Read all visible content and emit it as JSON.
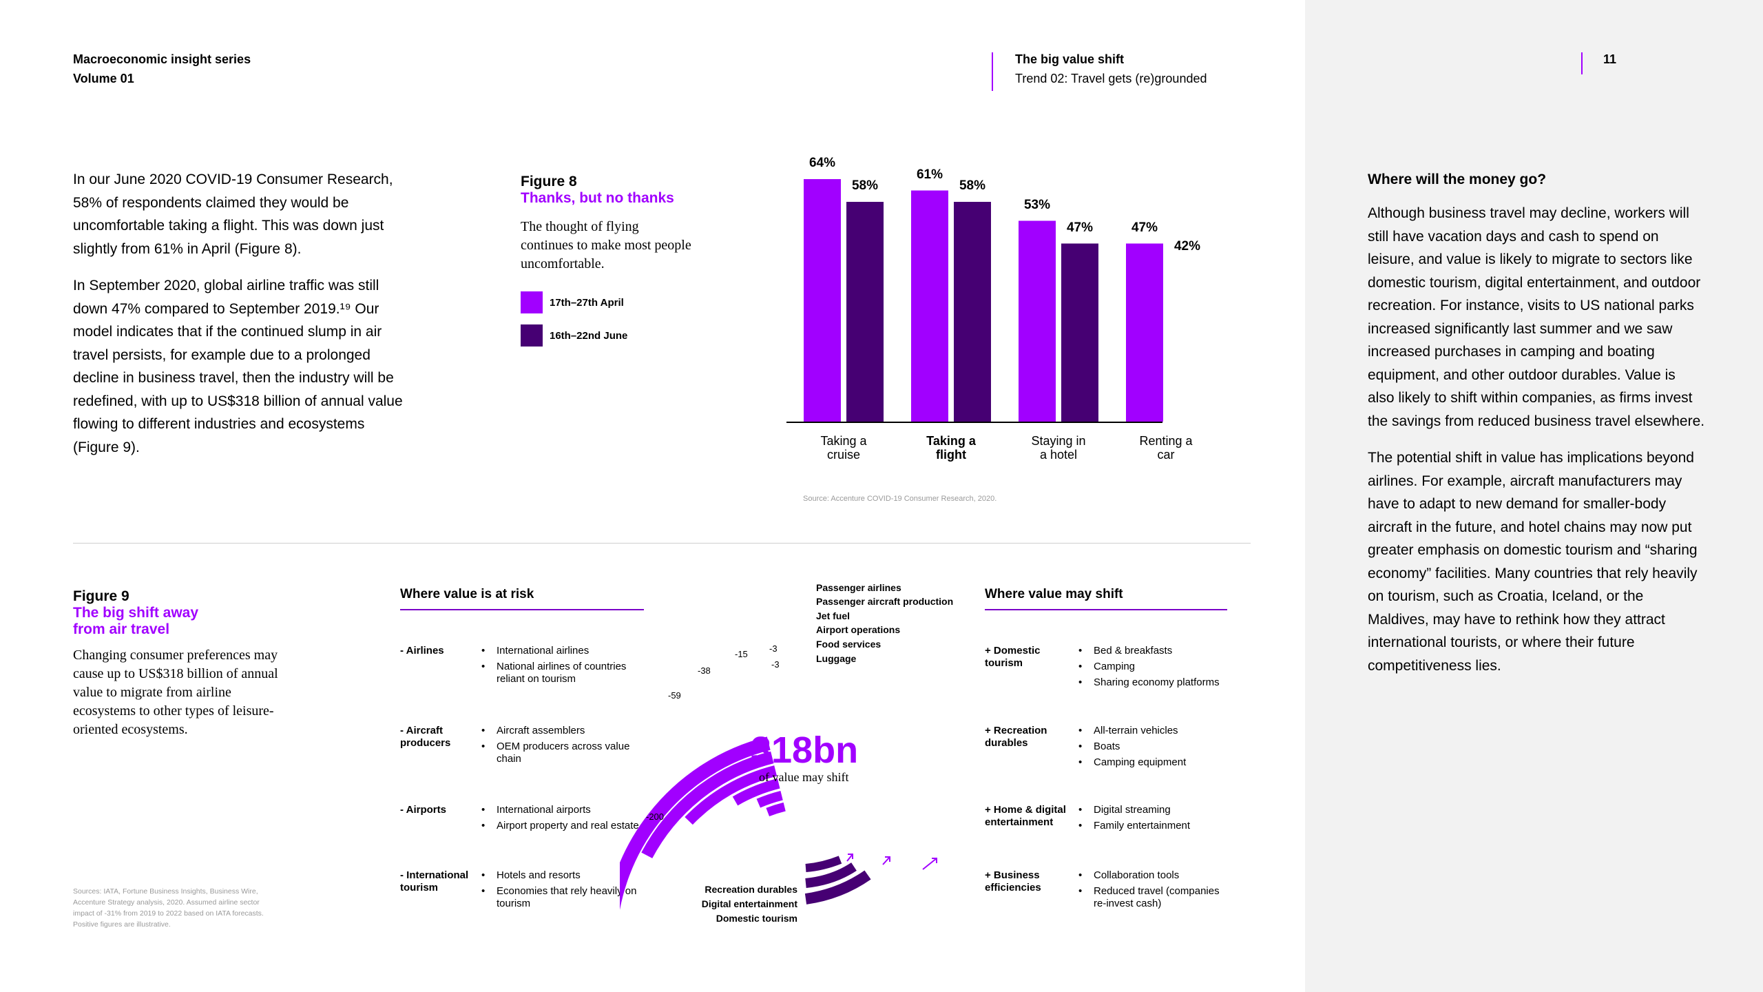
{
  "header": {
    "series_title": "Macroeconomic insight series",
    "volume": "Volume 01",
    "doc_title": "The big value shift",
    "trend": "Trend 02: Travel gets (re)grounded",
    "page_number": "11"
  },
  "intro": {
    "p1": "In our June 2020 COVID-19 Consumer Research, 58% of respondents claimed they would be uncomfortable taking a flight. This was down just slightly from 61% in April (Figure 8).",
    "p2": "In September 2020, global airline traffic was still down 47% compared to September 2019.¹⁹ Our model indicates that if the continued slump in air travel persists, for example due to a prolonged decline in business travel, then the industry will be redefined, with up to US$318 billion of annual value flowing to different industries and ecosystems (Figure 9)."
  },
  "figure8": {
    "label": "Figure 8",
    "title": "Thanks, but no thanks",
    "description": "The thought of flying continues to make most people uncomfortable.",
    "legend": [
      "17th–27th April",
      "16th–22nd June"
    ],
    "source": "Source: Accenture COVID-19 Consumer Research, 2020."
  },
  "chart_data": {
    "type": "bar",
    "categories": [
      "Taking a cruise",
      "Taking a flight",
      "Staying in a hotel",
      "Renting a car"
    ],
    "category_lines": [
      [
        "Taking a",
        "cruise"
      ],
      [
        "Taking a",
        "flight"
      ],
      [
        "Staying in",
        "a hotel"
      ],
      [
        "Renting a",
        "car"
      ]
    ],
    "highlighted_category": "Taking a flight",
    "series": [
      {
        "name": "17th–27th April",
        "values": [
          64,
          61,
          53,
          47
        ],
        "labels": [
          "64%",
          "61%",
          "53%",
          "47%"
        ],
        "color": "#a100ff"
      },
      {
        "name": "16th–22nd June",
        "values": [
          58,
          58,
          47,
          42
        ],
        "labels": [
          "58%",
          "58%",
          "47%",
          "42%"
        ],
        "color": "#460073"
      }
    ],
    "ylim": [
      0,
      64
    ],
    "grid": false,
    "legend": "left"
  },
  "figure9": {
    "label": "Figure 9",
    "title": "The big shift away from air travel",
    "description": "Changing consumer preferences may cause up to US$318 billion of annual value to migrate from airline ecosystems to other types of leisure-oriented ecosystems.",
    "sources": "Sources: IATA, Fortune Business Insights, Business Wire, Accenture Strategy analysis, 2020. Assumed airline sector impact of -31% from 2019 to 2022 based on IATA forecasts. Positive figures are illustrative.",
    "risk_heading": "Where value is at risk",
    "shift_heading": "Where value may shift",
    "risk_sections": [
      {
        "category": "- Airlines",
        "items": [
          "International airlines",
          "National airlines of countries reliant on tourism"
        ]
      },
      {
        "category": "- Aircraft producers",
        "items": [
          "Aircraft assemblers",
          "OEM producers across value chain"
        ]
      },
      {
        "category": "- Airports",
        "items": [
          "International airports",
          "Airport property and real estate"
        ]
      },
      {
        "category": "- International tourism",
        "items": [
          "Hotels and resorts",
          "Economies that rely heavily on tourism"
        ]
      }
    ],
    "shift_sections": [
      {
        "category": "+ Domestic tourism",
        "items": [
          "Bed & breakfasts",
          "Camping",
          "Sharing economy platforms"
        ]
      },
      {
        "category": "+ Recreation durables",
        "items": [
          "All-terrain vehicles",
          "Boats",
          "Camping equipment"
        ]
      },
      {
        "category": "+ Home & digital entertainment",
        "items": [
          "Digital streaming",
          "Family entertainment"
        ]
      },
      {
        "category": "+ Business efficiencies",
        "items": [
          "Collaboration tools",
          "Reduced travel (companies re-invest cash)"
        ]
      }
    ],
    "arc_labels": [
      "Passenger airlines",
      "Passenger aircraft production",
      "Jet fuel",
      "Airport operations",
      "Food services",
      "Luggage"
    ],
    "arc_values": [
      "-200",
      "-59",
      "-38",
      "-15",
      "-3",
      "-3"
    ],
    "big_value": "-318bn",
    "big_value_caption": "of value may shift",
    "shift_labels": [
      "Recreation durables",
      "Digital entertainment",
      "Domestic tourism"
    ],
    "colors": {
      "accent": "#a100ff",
      "dark": "#460073"
    }
  },
  "sidebar": {
    "heading": "Where will the money go?",
    "p1": "Although business travel may decline, workers will still have vacation days and cash to spend on leisure, and value is likely to migrate to sectors like domestic tourism, digital entertainment, and outdoor recreation. For instance, visits to US national parks increased significantly last summer and we saw increased purchases in camping and boating equipment, and other outdoor durables. Value is also likely to shift within companies, as firms invest the savings from reduced business travel elsewhere.",
    "p2": "The potential shift in value has implications beyond airlines. For example, aircraft manufacturers may have to adapt to new demand for smaller-body aircraft in the future, and hotel chains may now put greater emphasis on domestic tourism and “sharing economy” facilities. Many countries that rely heavily on tourism, such as Croatia, Iceland, or the Maldives, may have to rethink how they attract international tourists, or where their future competitiveness lies."
  }
}
